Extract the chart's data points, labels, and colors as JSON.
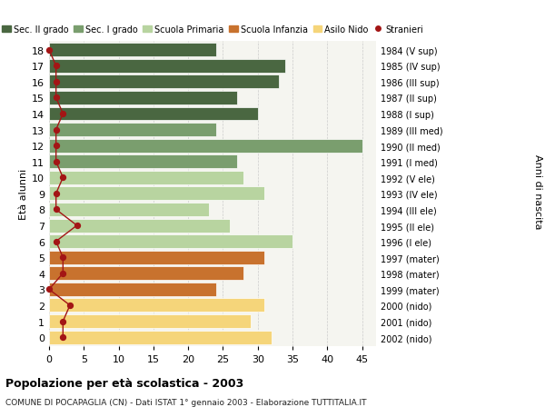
{
  "ages": [
    18,
    17,
    16,
    15,
    14,
    13,
    12,
    11,
    10,
    9,
    8,
    7,
    6,
    5,
    4,
    3,
    2,
    1,
    0
  ],
  "bar_values": [
    24,
    34,
    33,
    27,
    30,
    24,
    45,
    27,
    28,
    31,
    23,
    26,
    35,
    31,
    28,
    24,
    31,
    29,
    32
  ],
  "right_labels": [
    "1984 (V sup)",
    "1985 (IV sup)",
    "1986 (III sup)",
    "1987 (II sup)",
    "1988 (I sup)",
    "1989 (III med)",
    "1990 (II med)",
    "1991 (I med)",
    "1992 (V ele)",
    "1993 (IV ele)",
    "1994 (III ele)",
    "1995 (II ele)",
    "1996 (I ele)",
    "1997 (mater)",
    "1998 (mater)",
    "1999 (mater)",
    "2000 (nido)",
    "2001 (nido)",
    "2002 (nido)"
  ],
  "bar_colors": [
    "#4a6741",
    "#4a6741",
    "#4a6741",
    "#4a6741",
    "#4a6741",
    "#7a9e6e",
    "#7a9e6e",
    "#7a9e6e",
    "#b8d4a0",
    "#b8d4a0",
    "#b8d4a0",
    "#b8d4a0",
    "#b8d4a0",
    "#c8722e",
    "#c8722e",
    "#c8722e",
    "#f5d57a",
    "#f5d57a",
    "#f5d57a"
  ],
  "stranieri_values": [
    0,
    1,
    1,
    1,
    2,
    1,
    1,
    1,
    2,
    1,
    1,
    4,
    1,
    2,
    2,
    0,
    3,
    2,
    2
  ],
  "legend_labels": [
    "Sec. II grado",
    "Sec. I grado",
    "Scuola Primaria",
    "Scuola Infanzia",
    "Asilo Nido",
    "Stranieri"
  ],
  "legend_colors": [
    "#4a6741",
    "#7a9e6e",
    "#b8d4a0",
    "#c8722e",
    "#f5d57a",
    "#a31515"
  ],
  "ylabel_left": "Età alunni",
  "ylabel_right": "Anni di nascita",
  "title": "Popolazione per età scolastica - 2003",
  "subtitle": "COMUNE DI POCAPAGLIA (CN) - Dati ISTAT 1° gennaio 2003 - Elaborazione TUTTITALIA.IT",
  "xlim": [
    0,
    47
  ],
  "xticks": [
    0,
    5,
    10,
    15,
    20,
    25,
    30,
    35,
    40,
    45
  ],
  "bg_color": "#f5f5f0",
  "grid_color": "#cccccc"
}
